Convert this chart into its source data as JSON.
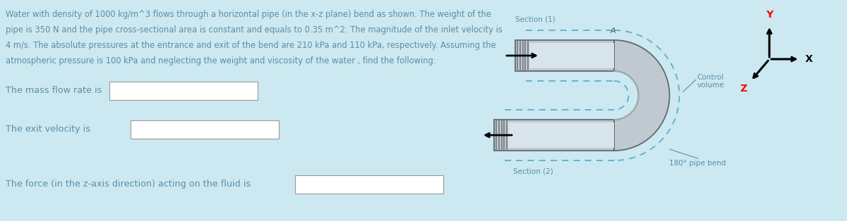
{
  "bg_color": "#cce8f0",
  "text_color": "#5a8fa8",
  "para_text_lines": [
    "Water with density of 1000 kg/m^3 flows through a horizontal pipe (in the x-z plane) bend as shown. The weight of the",
    "pipe is 350 N and the pipe cross-sectional area is constant and equals to 0.35 m^2. The magnitude of the inlet velocity is",
    "4 m/s. The absolute pressures at the entrance and exit of the bend are 210 kPa and 110 kPa, respectively. Assuming the",
    "atmospheric pressure is 100 kPa and neglecting the weight and viscosity of the water , find the following:"
  ],
  "q1_label": "The mass flow rate is",
  "q2_label": "The exit velocity is",
  "q3_label": "The force (in the z-axis direction) acting on the fluid is",
  "box_color": "#ffffff",
  "box_edge_color": "#999999",
  "pipe_fill": "#c0c8d0",
  "pipe_inner_fill": "#d8e4ec",
  "pipe_edge": "#606870",
  "dashed_color": "#5ab0cc",
  "label_section1": "Section (1)",
  "label_section2": "Section (2)",
  "label_control": "Control\nvolume",
  "label_bend": "180° pipe bend",
  "label_A": "A",
  "pipe_thread_color": "#707880"
}
